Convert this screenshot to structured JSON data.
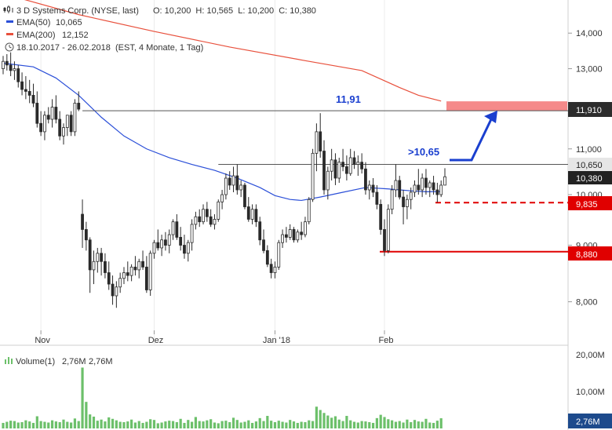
{
  "header": {
    "instrument": "3 D Systems Corp. (NYSE, last)",
    "ohlc": "O: 10,200  H: 10,565  L: 10,200  C: 10,380",
    "ema50_label": "EMA(50)",
    "ema50_value": "10,065",
    "ema200_label": "EMA(200)",
    "ema200_value": "12,152",
    "period": "18.10.2017 - 26.02.2018  (EST, 4 Monate, 1 Tag)"
  },
  "colors": {
    "ema50": "#2b4fd8",
    "ema200": "#e8503c",
    "candle": "#2a2a2a",
    "level_red": "#e00000",
    "target_zone": "#f58a8a",
    "volume": "#6cc06a",
    "annotation": "#1a3fcf",
    "close_tag": "#222222"
  },
  "annotations": {
    "target_level": "11,91",
    "breakout_level": ">10,65"
  },
  "level_tags": {
    "resistance": "11,910",
    "breakout": "10,650",
    "last": "10,380",
    "support1": "9,835",
    "support2": "8,880"
  },
  "volume_panel": {
    "label": "Volume(1)",
    "value1": "2,76M",
    "value2": "2,76M",
    "last_tag": "2,76M",
    "ticks": [
      "20,00M",
      "10,00M"
    ]
  },
  "chart_data": {
    "type": "candlestick",
    "title": "3 D Systems Corp. (NYSE, last)",
    "y_scale": "log",
    "ylim": [
      7.55,
      15.0
    ],
    "y_ticks": [
      "14,000",
      "13,000",
      "11,000",
      "10,000",
      "9,000",
      "8,000"
    ],
    "x_ticks": [
      "Nov",
      "Dez",
      "Jan '18",
      "Feb"
    ],
    "levels": [
      {
        "value": 11.91,
        "style": "gray line",
        "tag": "11,910"
      },
      {
        "value": 10.65,
        "style": "gray line",
        "tag": "10,650"
      },
      {
        "value": 9.835,
        "style": "red dashed",
        "tag": "9,835"
      },
      {
        "value": 8.88,
        "style": "red solid",
        "tag": "8,880"
      }
    ],
    "candles": [
      [
        13.0,
        13.35,
        12.85,
        13.2
      ],
      [
        13.2,
        13.4,
        12.95,
        13.1
      ],
      [
        13.1,
        13.45,
        12.8,
        12.95
      ],
      [
        12.95,
        13.2,
        12.7,
        13.0
      ],
      [
        13.0,
        13.1,
        12.5,
        12.65
      ],
      [
        12.65,
        12.9,
        12.3,
        12.45
      ],
      [
        12.45,
        12.8,
        12.2,
        12.4
      ],
      [
        12.4,
        12.7,
        12.1,
        12.3
      ],
      [
        12.3,
        12.6,
        12.0,
        12.1
      ],
      [
        12.1,
        12.4,
        11.5,
        11.6
      ],
      [
        11.6,
        11.9,
        11.3,
        11.4
      ],
      [
        11.4,
        11.9,
        11.2,
        11.8
      ],
      [
        11.8,
        12.0,
        11.6,
        11.7
      ],
      [
        11.7,
        12.2,
        11.5,
        12.0
      ],
      [
        12.0,
        12.3,
        11.6,
        11.7
      ],
      [
        11.7,
        11.9,
        11.2,
        11.3
      ],
      [
        11.3,
        11.6,
        11.1,
        11.5
      ],
      [
        11.5,
        11.8,
        11.3,
        11.8
      ],
      [
        11.8,
        11.9,
        11.3,
        11.4
      ],
      [
        11.4,
        12.2,
        11.3,
        12.1
      ],
      [
        12.1,
        12.4,
        11.9,
        11.95
      ],
      [
        9.6,
        9.9,
        8.95,
        9.3
      ],
      [
        9.3,
        9.45,
        8.9,
        9.1
      ],
      [
        9.1,
        9.15,
        8.15,
        8.55
      ],
      [
        8.55,
        8.9,
        8.3,
        8.7
      ],
      [
        8.7,
        8.95,
        8.5,
        8.85
      ],
      [
        8.85,
        8.95,
        8.45,
        8.7
      ],
      [
        8.7,
        8.85,
        8.4,
        8.5
      ],
      [
        8.5,
        8.7,
        8.2,
        8.3
      ],
      [
        8.3,
        8.45,
        7.95,
        8.1
      ],
      [
        8.1,
        8.35,
        7.9,
        8.25
      ],
      [
        8.25,
        8.5,
        8.15,
        8.4
      ],
      [
        8.4,
        8.6,
        8.3,
        8.5
      ],
      [
        8.5,
        8.7,
        8.35,
        8.45
      ],
      [
        8.45,
        8.65,
        8.35,
        8.6
      ],
      [
        8.6,
        8.8,
        8.45,
        8.55
      ],
      [
        8.55,
        8.75,
        8.4,
        8.7
      ],
      [
        8.7,
        8.9,
        8.55,
        8.6
      ],
      [
        8.6,
        8.8,
        8.15,
        8.2
      ],
      [
        8.2,
        8.9,
        8.1,
        8.85
      ],
      [
        8.85,
        9.1,
        8.75,
        9.05
      ],
      [
        9.05,
        9.3,
        8.9,
        8.95
      ],
      [
        8.95,
        9.2,
        8.8,
        9.1
      ],
      [
        9.1,
        9.25,
        8.9,
        9.0
      ],
      [
        9.0,
        9.3,
        8.85,
        9.2
      ],
      [
        9.2,
        9.5,
        9.1,
        9.45
      ],
      [
        9.45,
        9.6,
        9.1,
        9.15
      ],
      [
        9.15,
        9.35,
        8.9,
        9.0
      ],
      [
        9.0,
        9.2,
        8.75,
        8.85
      ],
      [
        8.85,
        9.1,
        8.7,
        9.05
      ],
      [
        9.05,
        9.5,
        8.9,
        9.4
      ],
      [
        9.4,
        9.65,
        9.3,
        9.55
      ],
      [
        9.55,
        9.7,
        9.35,
        9.45
      ],
      [
        9.45,
        9.8,
        9.4,
        9.7
      ],
      [
        9.7,
        9.85,
        9.45,
        9.55
      ],
      [
        9.55,
        9.7,
        9.35,
        9.4
      ],
      [
        9.4,
        9.6,
        9.3,
        9.5
      ],
      [
        9.5,
        9.9,
        9.45,
        9.85
      ],
      [
        9.85,
        10.1,
        9.7,
        10.0
      ],
      [
        10.0,
        10.45,
        9.9,
        10.35
      ],
      [
        10.35,
        10.5,
        10.1,
        10.2
      ],
      [
        10.2,
        10.6,
        10.05,
        10.4
      ],
      [
        10.4,
        10.65,
        10.0,
        10.1
      ],
      [
        10.1,
        10.3,
        9.95,
        10.2
      ],
      [
        10.2,
        10.25,
        9.7,
        9.75
      ],
      [
        9.75,
        9.95,
        9.45,
        9.5
      ],
      [
        9.5,
        9.8,
        9.4,
        9.7
      ],
      [
        9.7,
        9.8,
        9.35,
        9.45
      ],
      [
        9.45,
        9.55,
        9.0,
        9.1
      ],
      [
        9.1,
        9.3,
        8.85,
        8.9
      ],
      [
        8.9,
        9.0,
        8.6,
        8.65
      ],
      [
        8.65,
        8.75,
        8.4,
        8.5
      ],
      [
        8.5,
        8.7,
        8.4,
        8.6
      ],
      [
        8.6,
        9.1,
        8.55,
        9.05
      ],
      [
        9.05,
        9.3,
        8.95,
        9.2
      ],
      [
        9.2,
        9.35,
        9.05,
        9.15
      ],
      [
        9.15,
        9.4,
        9.1,
        9.3
      ],
      [
        9.3,
        9.35,
        9.05,
        9.1
      ],
      [
        9.1,
        9.3,
        9.05,
        9.25
      ],
      [
        9.25,
        9.45,
        9.1,
        9.2
      ],
      [
        9.2,
        9.55,
        9.15,
        9.45
      ],
      [
        9.45,
        9.95,
        9.4,
        9.9
      ],
      [
        9.9,
        11.0,
        9.85,
        10.9
      ],
      [
        10.9,
        11.6,
        10.5,
        11.4
      ],
      [
        11.4,
        11.85,
        10.8,
        10.95
      ],
      [
        10.95,
        11.2,
        10.0,
        10.1
      ],
      [
        10.1,
        10.6,
        9.9,
        10.5
      ],
      [
        10.5,
        11.0,
        10.3,
        10.75
      ],
      [
        10.75,
        10.9,
        10.2,
        10.35
      ],
      [
        10.35,
        10.8,
        10.25,
        10.7
      ],
      [
        10.7,
        11.0,
        10.5,
        10.6
      ],
      [
        10.6,
        10.85,
        10.3,
        10.45
      ],
      [
        10.45,
        11.0,
        10.4,
        10.8
      ],
      [
        10.8,
        10.95,
        10.55,
        10.65
      ],
      [
        10.65,
        10.85,
        10.4,
        10.7
      ],
      [
        10.7,
        10.9,
        10.45,
        10.55
      ],
      [
        10.55,
        10.7,
        10.0,
        10.1
      ],
      [
        10.1,
        10.3,
        9.9,
        10.2
      ],
      [
        10.2,
        10.35,
        9.95,
        10.05
      ],
      [
        10.05,
        10.2,
        9.7,
        9.8
      ],
      [
        9.8,
        9.9,
        9.2,
        9.3
      ],
      [
        9.3,
        9.5,
        8.8,
        8.9
      ],
      [
        8.9,
        9.8,
        8.85,
        9.7
      ],
      [
        9.7,
        10.2,
        9.6,
        10.1
      ],
      [
        10.1,
        10.65,
        9.95,
        10.3
      ],
      [
        10.3,
        10.4,
        9.9,
        9.95
      ],
      [
        9.95,
        10.1,
        9.4,
        9.75
      ],
      [
        9.75,
        10.0,
        9.5,
        9.9
      ],
      [
        9.9,
        10.15,
        9.7,
        10.05
      ],
      [
        10.05,
        10.3,
        9.95,
        10.2
      ],
      [
        10.2,
        10.55,
        10.0,
        10.1
      ],
      [
        10.1,
        10.45,
        9.95,
        10.35
      ],
      [
        10.35,
        10.55,
        10.0,
        10.15
      ],
      [
        10.15,
        10.3,
        9.95,
        10.25
      ],
      [
        10.25,
        10.4,
        10.0,
        10.1
      ],
      [
        10.1,
        10.25,
        9.84,
        10.0
      ],
      [
        10.0,
        10.3,
        9.95,
        10.2
      ],
      [
        10.2,
        10.565,
        10.2,
        10.38
      ]
    ],
    "ema50": [
      [
        0,
        13.15
      ],
      [
        8,
        13.05
      ],
      [
        14,
        12.75
      ],
      [
        20,
        12.3
      ],
      [
        26,
        11.75
      ],
      [
        32,
        11.3
      ],
      [
        38,
        11.0
      ],
      [
        44,
        10.8
      ],
      [
        50,
        10.65
      ],
      [
        56,
        10.52
      ],
      [
        62,
        10.35
      ],
      [
        68,
        10.15
      ],
      [
        72,
        9.98
      ],
      [
        76,
        9.9
      ],
      [
        79,
        9.88
      ],
      [
        84,
        9.95
      ],
      [
        90,
        10.05
      ],
      [
        96,
        10.15
      ],
      [
        102,
        10.12
      ],
      [
        108,
        10.08
      ],
      [
        112,
        10.06
      ],
      [
        116,
        10.065
      ]
    ],
    "ema200": [
      [
        0,
        15.2
      ],
      [
        20,
        14.55
      ],
      [
        40,
        14.05
      ],
      [
        60,
        13.6
      ],
      [
        80,
        13.22
      ],
      [
        95,
        12.95
      ],
      [
        105,
        12.5
      ],
      [
        110,
        12.3
      ],
      [
        116,
        12.152
      ]
    ],
    "volume_millions": [
      1.5,
      1.8,
      2.1,
      2.0,
      1.6,
      1.7,
      2.2,
      1.9,
      1.5,
      3.3,
      2.0,
      1.8,
      1.6,
      2.2,
      1.9,
      1.7,
      2.4,
      1.8,
      1.6,
      2.7,
      2.0,
      16.5,
      7.2,
      3.8,
      3.2,
      2.1,
      2.4,
      1.9,
      3.0,
      2.6,
      2.2,
      1.8,
      1.7,
      1.9,
      2.4,
      1.6,
      2.0,
      1.5,
      1.8,
      2.5,
      2.3,
      1.4,
      1.6,
      1.9,
      2.1,
      2.0,
      1.7,
      2.6,
      1.5,
      2.3,
      1.8,
      3.1,
      2.0,
      1.9,
      2.2,
      2.5,
      1.6,
      1.4,
      2.0,
      2.1,
      1.7,
      2.9,
      2.3,
      1.6,
      1.8,
      2.2,
      1.5,
      1.9,
      2.8,
      2.0,
      3.4,
      2.1,
      1.7,
      2.1,
      1.8,
      1.6,
      2.3,
      1.9,
      1.5,
      1.8,
      1.7,
      2.2,
      2.0,
      5.9,
      5.0,
      4.2,
      3.5,
      2.9,
      3.3,
      2.4,
      2.0,
      3.4,
      2.2,
      1.8,
      1.6,
      2.0,
      1.9,
      1.7,
      1.5,
      2.8,
      3.7,
      3.1,
      2.5,
      2.2,
      1.8,
      2.0,
      1.6,
      2.4,
      1.7,
      2.3,
      1.9,
      1.8,
      2.6,
      1.6,
      1.5,
      2.1,
      2.76
    ]
  }
}
